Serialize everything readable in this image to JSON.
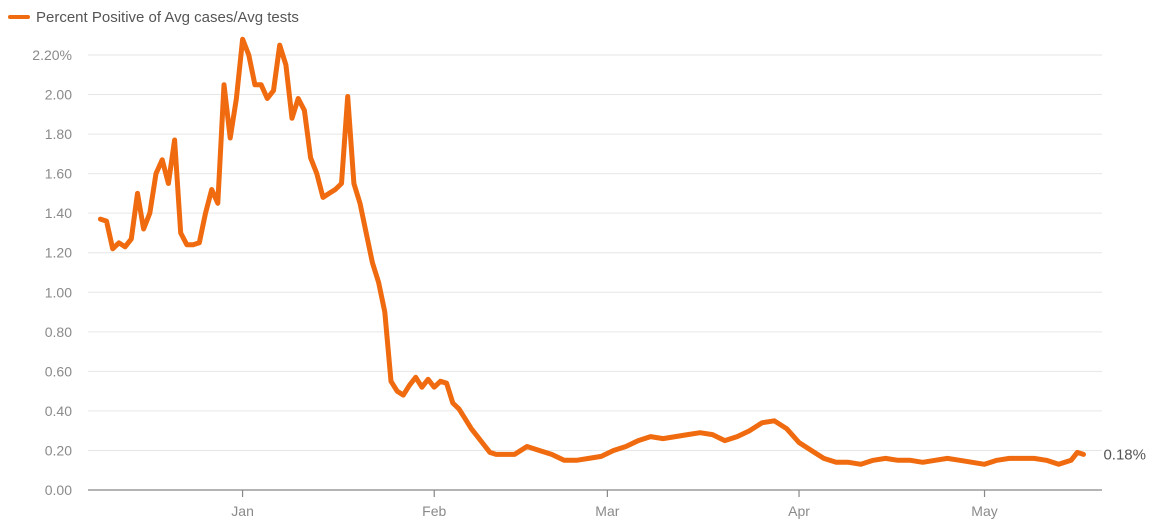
{
  "colors": {
    "series": "#f06a0f",
    "grid": "#e6e6e6",
    "axis": "#888888",
    "text": "#8a8a8a"
  },
  "chart_data": {
    "type": "line",
    "title": "",
    "xlabel": "",
    "ylabel": "",
    "legend_position": "top-left",
    "grid": true,
    "y_tick_labels": [
      "0.00",
      "0.20",
      "0.40",
      "0.60",
      "0.80",
      "1.00",
      "1.20",
      "1.40",
      "1.60",
      "1.80",
      "2.00",
      "2.20%"
    ],
    "y_ticks": [
      0,
      0.2,
      0.4,
      0.6,
      0.8,
      1.0,
      1.2,
      1.4,
      1.6,
      1.8,
      2.0,
      2.2
    ],
    "ylim": [
      0,
      2.2
    ],
    "x_tick_labels": [
      "Jan",
      "Feb",
      "Mar",
      "Apr",
      "May"
    ],
    "x_ticks": [
      "2021-01-01",
      "2021-02-01",
      "2021-03-01",
      "2021-04-01",
      "2021-05-01"
    ],
    "xlim": [
      "2020-12-07",
      "2021-05-20"
    ],
    "end_label": "0.18%",
    "series": [
      {
        "name": "Percent Positive of Avg cases/Avg tests",
        "x": [
          "2020-12-09",
          "2020-12-10",
          "2020-12-11",
          "2020-12-12",
          "2020-12-13",
          "2020-12-14",
          "2020-12-15",
          "2020-12-16",
          "2020-12-17",
          "2020-12-18",
          "2020-12-19",
          "2020-12-20",
          "2020-12-21",
          "2020-12-22",
          "2020-12-23",
          "2020-12-24",
          "2020-12-25",
          "2020-12-26",
          "2020-12-27",
          "2020-12-28",
          "2020-12-29",
          "2020-12-30",
          "2020-12-31",
          "2021-01-01",
          "2021-01-02",
          "2021-01-03",
          "2021-01-04",
          "2021-01-05",
          "2021-01-06",
          "2021-01-07",
          "2021-01-08",
          "2021-01-09",
          "2021-01-10",
          "2021-01-11",
          "2021-01-12",
          "2021-01-13",
          "2021-01-14",
          "2021-01-15",
          "2021-01-16",
          "2021-01-17",
          "2021-01-18",
          "2021-01-19",
          "2021-01-20",
          "2021-01-21",
          "2021-01-22",
          "2021-01-23",
          "2021-01-24",
          "2021-01-25",
          "2021-01-26",
          "2021-01-27",
          "2021-01-28",
          "2021-01-29",
          "2021-01-30",
          "2021-01-31",
          "2021-02-01",
          "2021-02-02",
          "2021-02-03",
          "2021-02-04",
          "2021-02-05",
          "2021-02-06",
          "2021-02-07",
          "2021-02-08",
          "2021-02-09",
          "2021-02-10",
          "2021-02-11",
          "2021-02-12",
          "2021-02-14",
          "2021-02-16",
          "2021-02-18",
          "2021-02-20",
          "2021-02-22",
          "2021-02-24",
          "2021-02-26",
          "2021-02-28",
          "2021-03-02",
          "2021-03-04",
          "2021-03-06",
          "2021-03-08",
          "2021-03-10",
          "2021-03-12",
          "2021-03-14",
          "2021-03-16",
          "2021-03-18",
          "2021-03-20",
          "2021-03-22",
          "2021-03-24",
          "2021-03-26",
          "2021-03-28",
          "2021-03-30",
          "2021-04-01",
          "2021-04-03",
          "2021-04-05",
          "2021-04-07",
          "2021-04-09",
          "2021-04-11",
          "2021-04-13",
          "2021-04-15",
          "2021-04-17",
          "2021-04-19",
          "2021-04-21",
          "2021-04-23",
          "2021-04-25",
          "2021-04-27",
          "2021-04-29",
          "2021-05-01",
          "2021-05-03",
          "2021-05-05",
          "2021-05-07",
          "2021-05-09",
          "2021-05-11",
          "2021-05-13",
          "2021-05-15",
          "2021-05-16",
          "2021-05-17"
        ],
        "y": [
          1.37,
          1.36,
          1.22,
          1.25,
          1.23,
          1.27,
          1.5,
          1.32,
          1.4,
          1.6,
          1.67,
          1.55,
          1.77,
          1.3,
          1.24,
          1.24,
          1.25,
          1.4,
          1.52,
          1.45,
          2.05,
          1.78,
          1.98,
          2.28,
          2.2,
          2.05,
          2.05,
          1.98,
          2.02,
          2.25,
          2.15,
          1.88,
          1.98,
          1.92,
          1.68,
          1.6,
          1.48,
          1.5,
          1.52,
          1.55,
          1.99,
          1.55,
          1.45,
          1.3,
          1.15,
          1.05,
          0.9,
          0.55,
          0.5,
          0.48,
          0.53,
          0.57,
          0.52,
          0.56,
          0.52,
          0.55,
          0.54,
          0.44,
          0.41,
          0.36,
          0.31,
          0.27,
          0.23,
          0.19,
          0.18,
          0.18,
          0.18,
          0.22,
          0.2,
          0.18,
          0.15,
          0.15,
          0.16,
          0.17,
          0.2,
          0.22,
          0.25,
          0.27,
          0.26,
          0.27,
          0.28,
          0.29,
          0.28,
          0.25,
          0.27,
          0.3,
          0.34,
          0.35,
          0.31,
          0.24,
          0.2,
          0.16,
          0.14,
          0.14,
          0.13,
          0.15,
          0.16,
          0.15,
          0.15,
          0.14,
          0.15,
          0.16,
          0.15,
          0.14,
          0.13,
          0.15,
          0.16,
          0.16,
          0.16,
          0.15,
          0.13,
          0.15,
          0.19,
          0.18
        ]
      }
    ]
  }
}
